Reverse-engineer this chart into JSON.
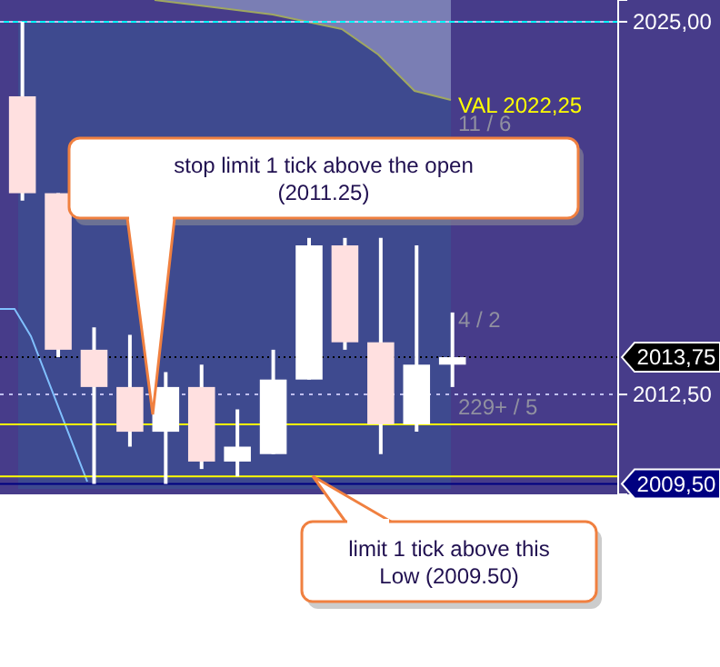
{
  "chart_data": {
    "type": "candlestick",
    "categories": [
      null,
      null,
      null,
      null,
      null,
      null,
      null,
      null,
      null,
      null,
      null,
      null,
      null,
      null,
      null,
      null,
      null
    ],
    "ohlc": [
      [
        2022.5,
        2025.0,
        2019.0,
        2019.25
      ],
      [
        2019.25,
        2019.25,
        2013.75,
        2014.0
      ],
      [
        2014.0,
        2014.75,
        2009.5,
        2012.75
      ],
      [
        2012.75,
        2014.5,
        2010.75,
        2011.25
      ],
      [
        2011.25,
        2013.25,
        2009.5,
        2012.75
      ],
      [
        2012.75,
        2013.5,
        2010.0,
        2010.25
      ],
      [
        2010.25,
        2012.0,
        2009.75,
        2010.75
      ],
      [
        2010.5,
        2014.0,
        2010.5,
        2013.0
      ],
      [
        2013.0,
        2017.75,
        2013.0,
        2017.5
      ],
      [
        2017.5,
        2017.75,
        2014.0,
        2014.25
      ],
      [
        2014.25,
        2017.75,
        2010.5,
        2011.5
      ],
      [
        2011.5,
        2017.5,
        2011.25,
        2013.5
      ],
      [
        2013.5,
        2015.25,
        2012.75,
        2013.75
      ],
      null,
      null,
      null,
      null
    ],
    "colors": [
      "#ffe0e0",
      "#ffe0e0",
      "#ffe0e0",
      "#ffe0e0",
      "#ffffff",
      "#ffe0e0",
      "#ffffff",
      "#ffffff",
      "#ffffff",
      "#ffe0e0",
      "#ffe0e0",
      "#ffffff",
      "#ffffff",
      null,
      null,
      null,
      null
    ],
    "ylim": [
      2009.15,
      2025.73
    ],
    "yticks": [
      {
        "value": 2025,
        "label": "2025,00"
      },
      {
        "value": 2012.5,
        "label": "2012,50"
      }
    ],
    "grid": "y",
    "tick_labels": "y",
    "ref_lines": [
      {
        "axis": "y",
        "value": 2025.0,
        "color": "#00ffff"
      },
      {
        "axis": "y",
        "value": 2011.5,
        "color": "#ffff00"
      },
      {
        "axis": "y",
        "value": 2009.75,
        "color": "#ffff00"
      },
      {
        "axis": "y",
        "value": 2013.75,
        "label": "2013,75",
        "color": "#000000",
        "line_style": "dotted"
      },
      {
        "axis": "y",
        "value": 2009.5,
        "label": "2009,50",
        "color": "#000080"
      }
    ],
    "annotations": [
      "VAL 2022,25",
      "11 / 6",
      "4 / 2",
      "229+ / 5",
      "stop limit 1 tick above the open (2011.25)",
      "limit 1 tick above this Low (2009.50)"
    ]
  }
}
